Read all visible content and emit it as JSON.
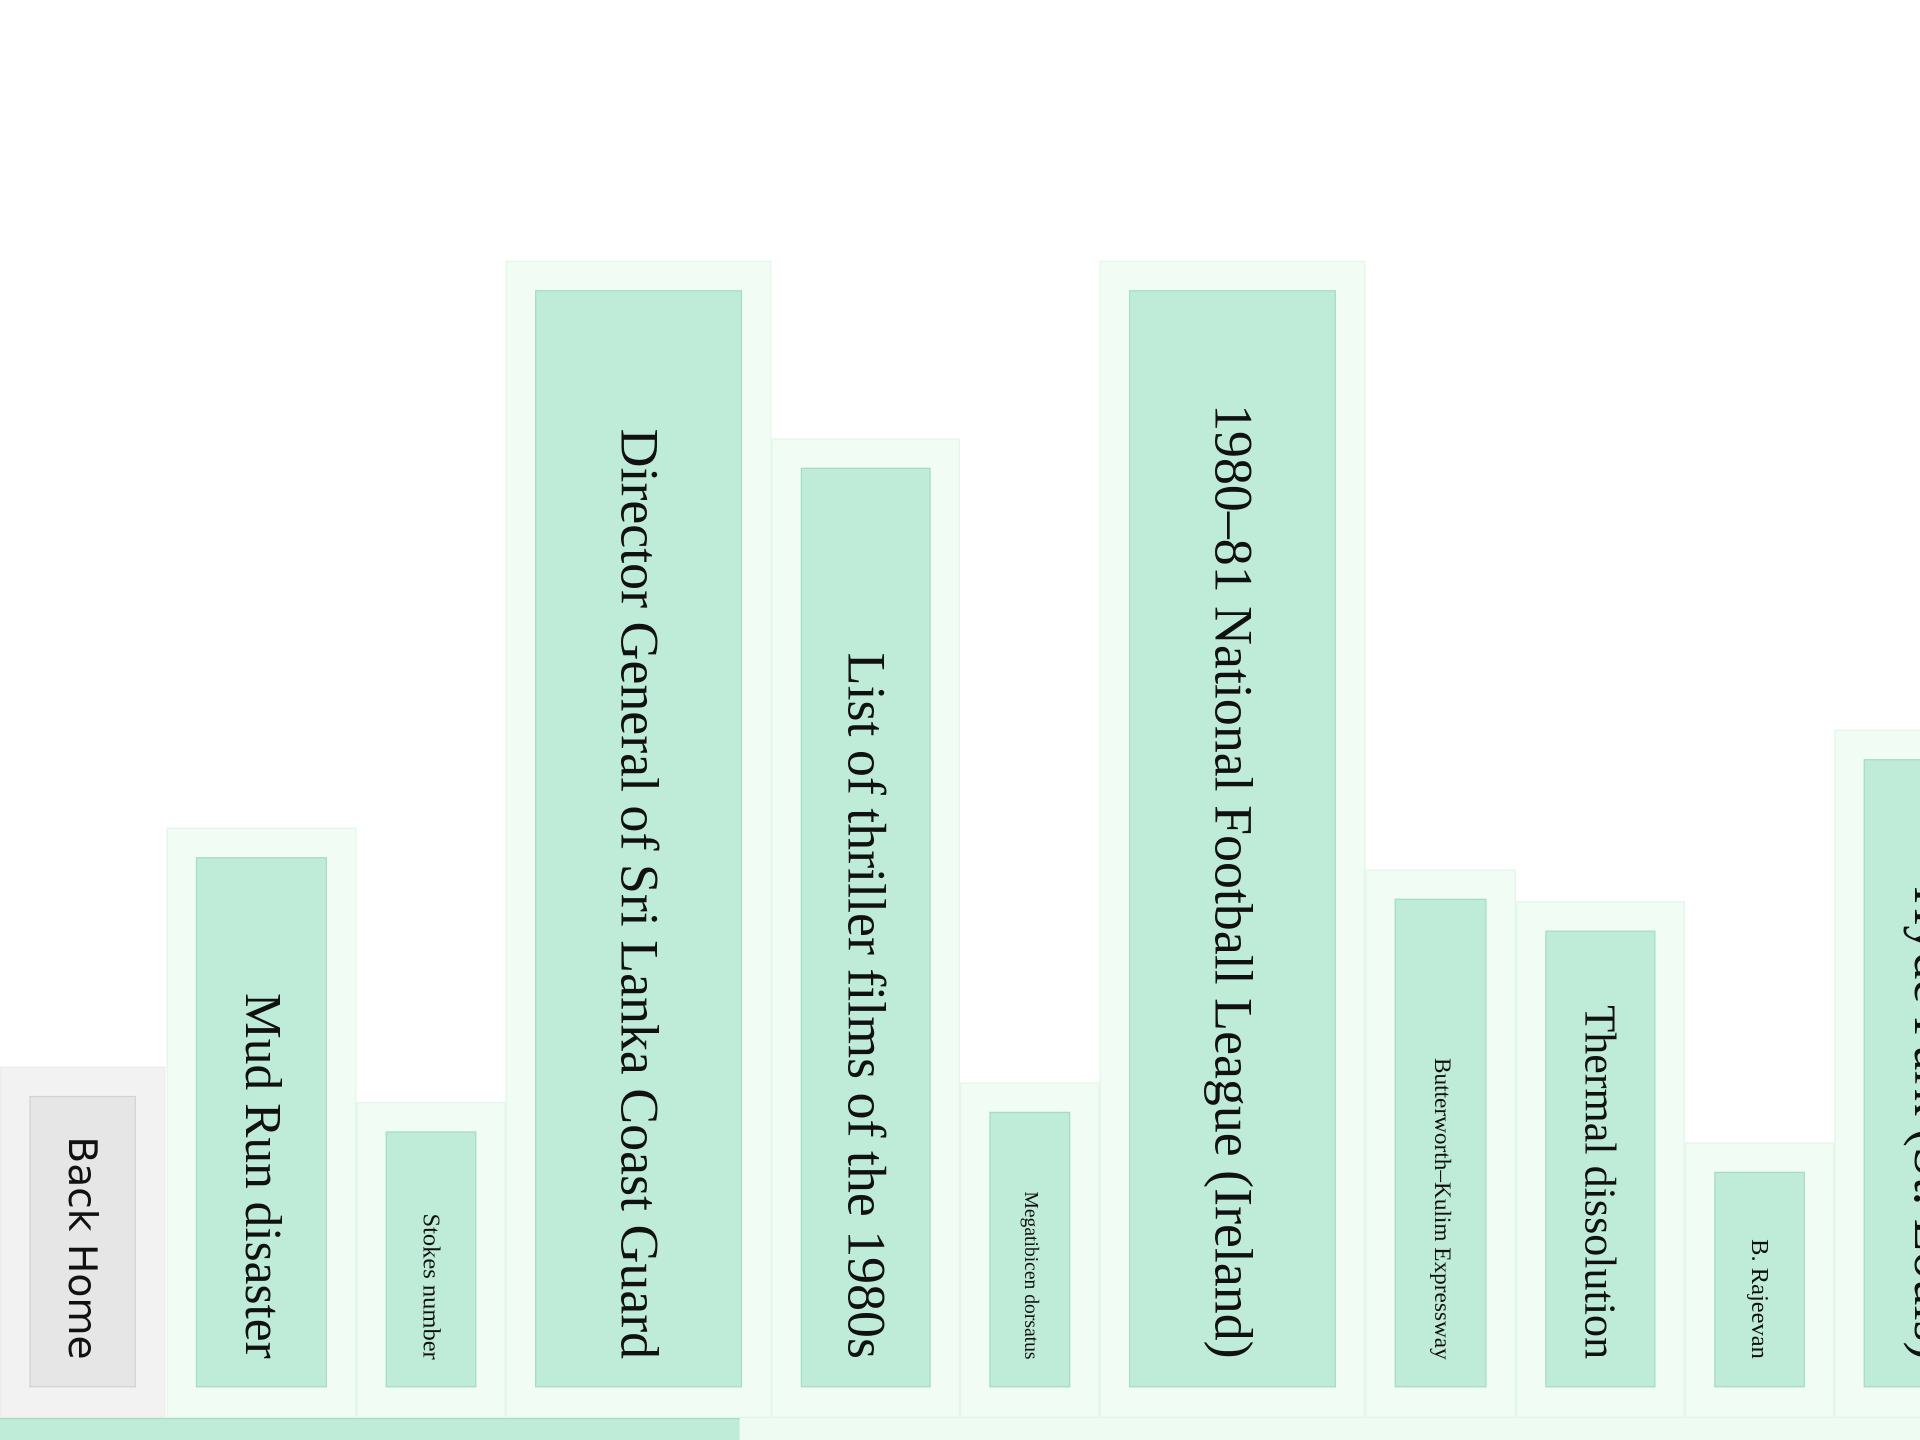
{
  "back_button": {
    "label": "Back Home"
  },
  "items": [
    {
      "label": "Mud Run disaster"
    },
    {
      "label": "Stokes number"
    },
    {
      "label": "Director General of Sri Lanka Coast Guard"
    },
    {
      "label": "List of thriller films of the 1980s"
    },
    {
      "label": "Megatibicen dorsatus"
    },
    {
      "label": "1980–81 National Football League (Ireland)"
    },
    {
      "label": "Butterworth–Kulim Expressway"
    },
    {
      "label": "Thermal dissolution"
    },
    {
      "label": "B. Rajeevan"
    },
    {
      "label": "Hyde Park (St. Louis)"
    }
  ]
}
